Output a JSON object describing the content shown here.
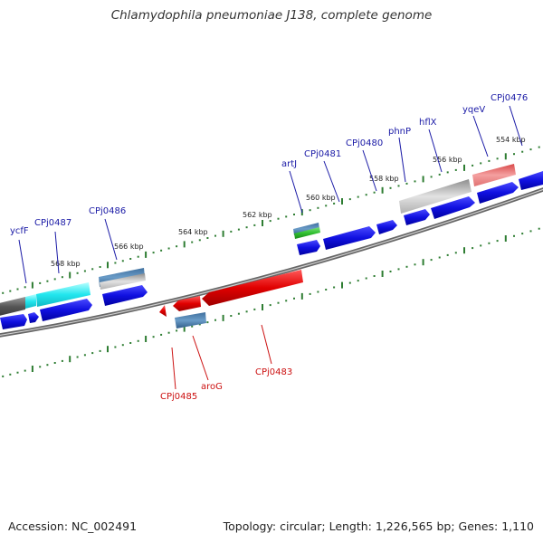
{
  "title": "Chlamydophila pneumoniae J138, complete genome",
  "footer": {
    "accession": "Accession: NC_002491",
    "stats": "Topology: circular; Length: 1,226,565 bp; Genes: 1,110"
  },
  "colors": {
    "backbone": "#777777",
    "tick": "#2e7d32",
    "forward_label": "#1a1aa6",
    "reverse_label": "#cc1111",
    "forward_gene": "#1010e0",
    "reverse_gene": "#e00000"
  },
  "kbp_labels": [
    "568 kbp",
    "566 kbp",
    "564 kbp",
    "562 kbp",
    "560 kbp",
    "558 kbp",
    "556 kbp",
    "554 kbp"
  ],
  "forward_labels": [
    "ycfF",
    "CPj0487",
    "CPj0486",
    "artJ",
    "CPj0481",
    "CPj0480",
    "phnP",
    "hflX",
    "yqeV",
    "CPj0476"
  ],
  "reverse_labels": [
    "CPj0485",
    "aroG",
    "CPj0483"
  ]
}
